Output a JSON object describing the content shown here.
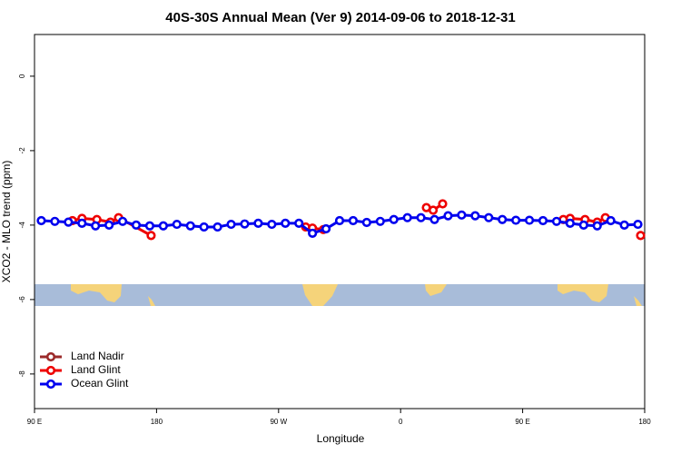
{
  "chart_data": {
    "type": "line",
    "title": "40S-30S Annual Mean (Ver 9)   2014-09-06 to 2018-12-31",
    "xlabel": "Longitude",
    "ylabel": "XCO2 - MLO trend (ppm)",
    "xlim": [
      90,
      540
    ],
    "ylim": [
      -8.93,
      1.12
    ],
    "xticks": [
      {
        "value": 90,
        "label": "90 E"
      },
      {
        "value": 180,
        "label": "180"
      },
      {
        "value": 270,
        "label": "90 W"
      },
      {
        "value": 360,
        "label": "0"
      },
      {
        "value": 450,
        "label": "90 E"
      },
      {
        "value": 540,
        "label": "180"
      }
    ],
    "yticks": [
      0,
      -2,
      -4,
      -6,
      -8
    ],
    "legend": "bottom-left",
    "series": [
      {
        "name": "Land Nadir",
        "color": "#9b2a2a",
        "x": [],
        "values": []
      },
      {
        "name": "Land Glint",
        "color": "#ee0000",
        "x": [
          118,
          125,
          136,
          146,
          152,
          176,
          null,
          290,
          295,
          303,
          null,
          379,
          384,
          391,
          null,
          480,
          485,
          496,
          505,
          511,
          null,
          537
        ],
        "values": [
          -3.88,
          -3.82,
          -3.85,
          -3.92,
          -3.8,
          -4.28,
          null,
          -4.05,
          -4.08,
          -4.12,
          null,
          -3.53,
          -3.6,
          -3.43,
          null,
          -3.85,
          -3.82,
          -3.85,
          -3.92,
          -3.8,
          null,
          -4.28
        ]
      },
      {
        "name": "Ocean Glint",
        "color": "#0000ee",
        "x": [
          95,
          105,
          115,
          125,
          135,
          145,
          155,
          165,
          175,
          185,
          195,
          205,
          215,
          225,
          235,
          245,
          255,
          265,
          275,
          285,
          295,
          305,
          315,
          325,
          335,
          345,
          355,
          365,
          375,
          385,
          395,
          405,
          415,
          425,
          435,
          445,
          455,
          465,
          475,
          485,
          495,
          505,
          515,
          525,
          535
        ],
        "values": [
          -3.88,
          -3.9,
          -3.92,
          -3.95,
          -4.02,
          -4.0,
          -3.9,
          -4.0,
          -4.02,
          -4.02,
          -3.98,
          -4.02,
          -4.05,
          -4.05,
          -3.98,
          -3.97,
          -3.95,
          -3.98,
          -3.95,
          -3.95,
          -4.22,
          -4.1,
          -3.88,
          -3.88,
          -3.93,
          -3.9,
          -3.85,
          -3.8,
          -3.8,
          -3.85,
          -3.75,
          -3.73,
          -3.75,
          -3.8,
          -3.85,
          -3.87,
          -3.87,
          -3.88,
          -3.9,
          -3.95,
          -4.0,
          -4.02,
          -3.88,
          -4.0,
          -3.98
        ]
      }
    ]
  }
}
